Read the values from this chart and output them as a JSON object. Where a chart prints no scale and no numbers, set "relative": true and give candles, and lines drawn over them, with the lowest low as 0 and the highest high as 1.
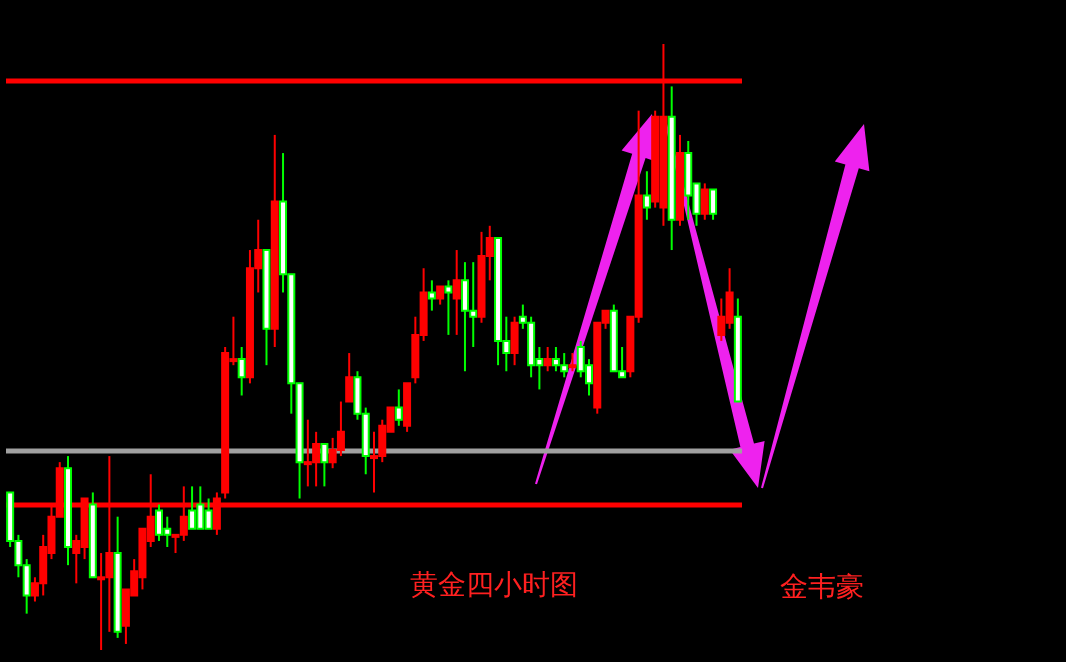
{
  "chart_data": {
    "type": "candlestick",
    "title": "黄金四小时图",
    "relative": true,
    "annotations": [
      "金韦豪"
    ],
    "categories": [
      null,
      null,
      null,
      null,
      null,
      null,
      null,
      null,
      null,
      null,
      null,
      null,
      null,
      null,
      null,
      null,
      null,
      null,
      null,
      null,
      null,
      null,
      null,
      null,
      null,
      null,
      null,
      null,
      null,
      null,
      null,
      null,
      null,
      null,
      null,
      null,
      null,
      null,
      null,
      null,
      null,
      null,
      null,
      null,
      null,
      null,
      null,
      null,
      null,
      null,
      null,
      null,
      null,
      null,
      null,
      null,
      null,
      null,
      null,
      null,
      null,
      null,
      null,
      null,
      null,
      null,
      null,
      null,
      null,
      null,
      null,
      null,
      null,
      null,
      null,
      null,
      null,
      null,
      null,
      null,
      null,
      null,
      null,
      null,
      null,
      null,
      null,
      null,
      null
    ],
    "ohlc": [
      [
        0.26,
        0.26,
        0.17,
        0.18
      ],
      [
        0.18,
        0.19,
        0.12,
        0.14
      ],
      [
        0.14,
        0.15,
        0.06,
        0.09
      ],
      [
        0.09,
        0.12,
        0.08,
        0.11
      ],
      [
        0.11,
        0.19,
        0.09,
        0.17
      ],
      [
        0.16,
        0.24,
        0.15,
        0.22
      ],
      [
        0.22,
        0.31,
        0.22,
        0.3
      ],
      [
        0.3,
        0.32,
        0.14,
        0.17
      ],
      [
        0.16,
        0.19,
        0.11,
        0.18
      ],
      [
        0.17,
        0.25,
        0.15,
        0.25
      ],
      [
        0.24,
        0.26,
        0.12,
        0.12
      ],
      [
        0.12,
        0.16,
        0,
        0.12
      ],
      [
        0.12,
        0.32,
        0.03,
        0.16
      ],
      [
        0.16,
        0.22,
        0.02,
        0.03
      ],
      [
        0.04,
        0.1,
        0.01,
        0.1
      ],
      [
        0.09,
        0.15,
        0.09,
        0.13
      ],
      [
        0.12,
        0.2,
        0.1,
        0.2
      ],
      [
        0.18,
        0.29,
        0.17,
        0.22
      ],
      [
        0.23,
        0.24,
        0.18,
        0.19
      ],
      [
        0.2,
        0.22,
        0.17,
        0.19
      ],
      [
        0.19,
        0.19,
        0.16,
        0.19
      ],
      [
        0.19,
        0.27,
        0.18,
        0.22
      ],
      [
        0.23,
        0.27,
        0.2,
        0.2
      ],
      [
        0.24,
        0.27,
        0.2,
        0.2
      ],
      [
        0.23,
        0.25,
        0.2,
        0.2
      ],
      [
        0.2,
        0.26,
        0.19,
        0.25
      ],
      [
        0.26,
        0.5,
        0.25,
        0.49
      ],
      [
        0.48,
        0.55,
        0.47,
        0.48
      ],
      [
        0.48,
        0.5,
        0.42,
        0.45
      ],
      [
        0.45,
        0.66,
        0.44,
        0.63
      ],
      [
        0.63,
        0.71,
        0.59,
        0.66
      ],
      [
        0.66,
        0.66,
        0.47,
        0.53
      ],
      [
        0.53,
        0.85,
        0.5,
        0.74
      ],
      [
        0.74,
        0.82,
        0.59,
        0.62
      ],
      [
        0.62,
        0.62,
        0.39,
        0.44
      ],
      [
        0.44,
        0.44,
        0.25,
        0.31
      ],
      [
        0.31,
        0.38,
        0.27,
        0.31
      ],
      [
        0.31,
        0.36,
        0.27,
        0.34
      ],
      [
        0.34,
        0.34,
        0.27,
        0.31
      ],
      [
        0.31,
        0.35,
        0.3,
        0.33
      ],
      [
        0.33,
        0.41,
        0.32,
        0.36
      ],
      [
        0.41,
        0.49,
        0.41,
        0.45
      ],
      [
        0.45,
        0.46,
        0.38,
        0.39
      ],
      [
        0.39,
        0.4,
        0.29,
        0.32
      ],
      [
        0.32,
        0.36,
        0.26,
        0.32
      ],
      [
        0.32,
        0.38,
        0.31,
        0.37
      ],
      [
        0.36,
        0.4,
        0.36,
        0.4
      ],
      [
        0.4,
        0.43,
        0.37,
        0.38
      ],
      [
        0.37,
        0.44,
        0.36,
        0.44
      ],
      [
        0.45,
        0.55,
        0.44,
        0.52
      ],
      [
        0.52,
        0.63,
        0.51,
        0.59
      ],
      [
        0.59,
        0.61,
        0.56,
        0.58
      ],
      [
        0.58,
        0.6,
        0.57,
        0.6
      ],
      [
        0.6,
        0.61,
        0.52,
        0.59
      ],
      [
        0.58,
        0.66,
        0.52,
        0.61
      ],
      [
        0.61,
        0.64,
        0.46,
        0.56
      ],
      [
        0.56,
        0.64,
        0.5,
        0.55
      ],
      [
        0.55,
        0.69,
        0.54,
        0.65
      ],
      [
        0.65,
        0.7,
        0.61,
        0.68
      ],
      [
        0.68,
        0.68,
        0.47,
        0.51
      ],
      [
        0.51,
        0.55,
        0.46,
        0.49
      ],
      [
        0.49,
        0.55,
        0.47,
        0.54
      ],
      [
        0.55,
        0.57,
        0.53,
        0.54
      ],
      [
        0.54,
        0.55,
        0.45,
        0.47
      ],
      [
        0.48,
        0.5,
        0.43,
        0.47
      ],
      [
        0.47,
        0.5,
        0.46,
        0.48
      ],
      [
        0.48,
        0.5,
        0.46,
        0.47
      ],
      [
        0.47,
        0.49,
        0.45,
        0.46
      ],
      [
        0.47,
        0.49,
        0.46,
        0.47
      ],
      [
        0.5,
        0.51,
        0.45,
        0.46
      ],
      [
        0.47,
        0.48,
        0.42,
        0.44
      ],
      [
        0.4,
        0.54,
        0.39,
        0.54
      ],
      [
        0.54,
        0.56,
        0.53,
        0.56
      ],
      [
        0.56,
        0.57,
        0.46,
        0.46
      ],
      [
        0.46,
        0.5,
        0.45,
        0.45
      ],
      [
        0.46,
        0.55,
        0.45,
        0.55
      ],
      [
        0.55,
        0.89,
        0.54,
        0.75
      ],
      [
        0.75,
        0.79,
        0.71,
        0.73
      ],
      [
        0.74,
        0.89,
        0.73,
        0.88
      ],
      [
        0.73,
        1,
        0.7,
        0.88
      ],
      [
        0.88,
        0.93,
        0.66,
        0.71
      ],
      [
        0.71,
        0.85,
        0.7,
        0.82
      ],
      [
        0.82,
        0.84,
        0.71,
        0.75
      ],
      [
        0.77,
        0.77,
        0.7,
        0.72
      ],
      [
        0.72,
        0.77,
        0.71,
        0.76
      ],
      [
        0.76,
        0.76,
        0.71,
        0.72
      ],
      [
        0.52,
        0.58,
        0.51,
        0.55
      ],
      [
        0.54,
        0.63,
        0.53,
        0.59
      ],
      [
        0.55,
        0.58,
        0.41,
        0.41
      ]
    ],
    "ref_lines": [
      {
        "axis": "y",
        "value": 0.94,
        "color": "#ff0000",
        "line_style": "solid"
      },
      {
        "axis": "y",
        "value": 0.24,
        "color": "#ff0000",
        "line_style": "solid"
      },
      {
        "axis": "y",
        "value": 0.33,
        "color": "#a0a0a0",
        "line_style": "solid"
      }
    ]
  }
}
